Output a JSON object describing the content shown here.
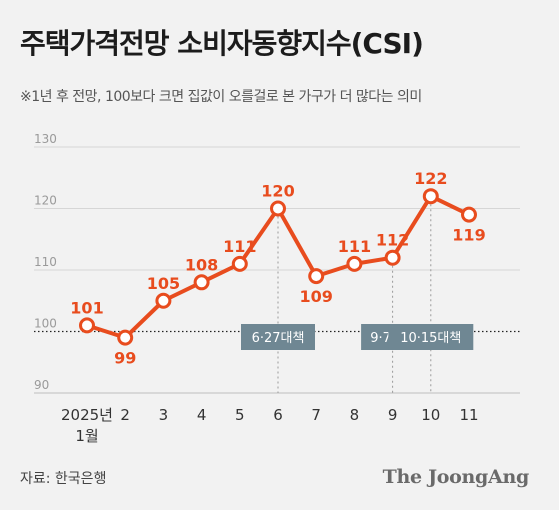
{
  "header": {
    "title": "주택가격전망 소비자동향지수(CSI)",
    "subtitle": "※1년 후 전망, 100보다 크면 집값이 오를걸로 본 가구가 더 많다는 의미"
  },
  "footer": {
    "source": "자료: 한국은행",
    "brand": "The JoongAng"
  },
  "colors": {
    "line": "#e84c1e",
    "label": "#e84c1e",
    "annotation_bg": "#6f8793",
    "annotation_text": "#ffffff",
    "grid": "#d6d6d6",
    "axis_text": "#9a9a9a",
    "x_text": "#333333"
  },
  "chart_data": {
    "type": "line",
    "x": [
      "2025년\n1월",
      "2",
      "3",
      "4",
      "5",
      "6",
      "7",
      "8",
      "9",
      "10",
      "11"
    ],
    "series": [
      {
        "values": [
          101,
          99,
          105,
          108,
          111,
          120,
          109,
          111,
          112,
          122,
          119
        ]
      }
    ],
    "ylim": [
      90,
      130
    ],
    "yticks": [
      90,
      100,
      110,
      120,
      130
    ],
    "reference_line": 100,
    "grid": true,
    "annotations": [
      {
        "x_index": 5,
        "label": "6·27대책"
      },
      {
        "x_index": 8,
        "label": "9·7대책"
      },
      {
        "x_index": 9,
        "label": "10·15대책"
      }
    ]
  }
}
